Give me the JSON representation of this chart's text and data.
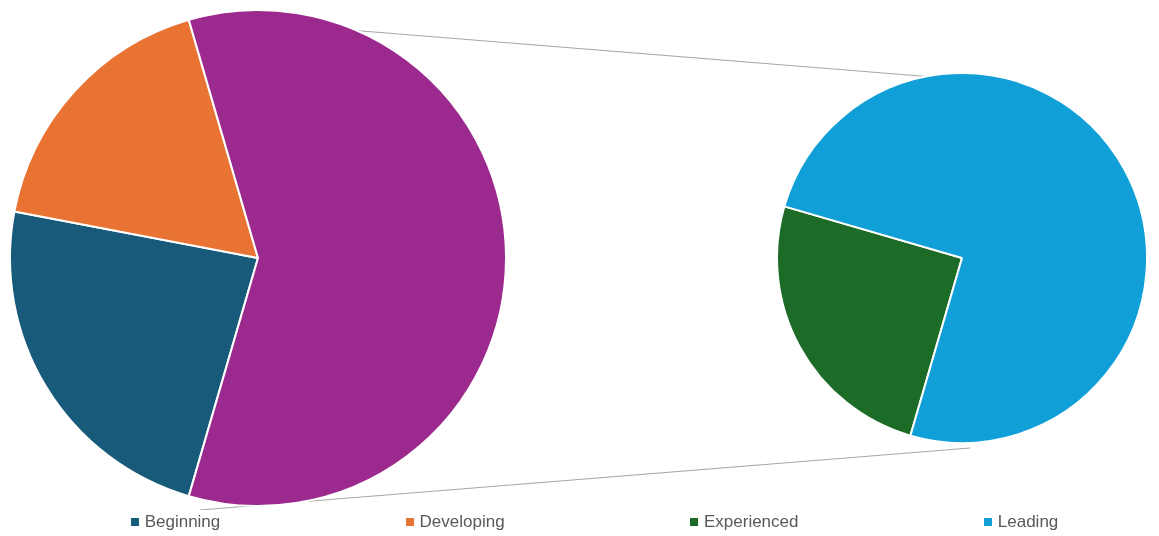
{
  "chart_data": [
    {
      "type": "pie",
      "categories": [
        "Beginning",
        "Developing",
        null
      ],
      "values": [
        23.5,
        17.5,
        59
      ],
      "colors": [
        "#175a7a",
        "#e97332",
        "#9c2a8e"
      ],
      "legend": "bottom"
    },
    {
      "type": "pie",
      "categories": [
        "Experienced",
        "Leading"
      ],
      "values": [
        25,
        75
      ],
      "colors": [
        "#1c6b26",
        "#119fd8"
      ],
      "legend": "bottom"
    }
  ]
}
